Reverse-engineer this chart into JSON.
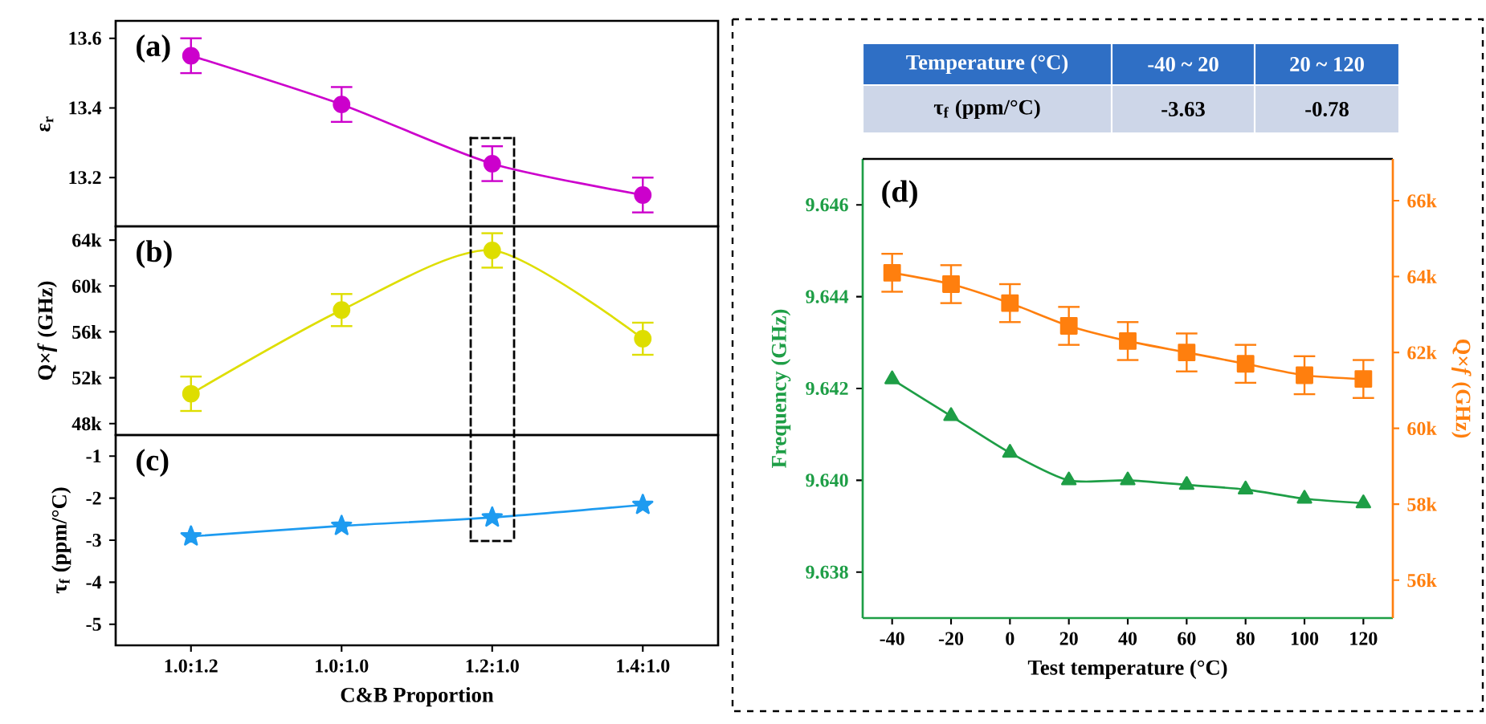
{
  "chart_data": [
    {
      "type": "line",
      "title": "(a)",
      "ylabel": "ε$_{r}$",
      "categories": [
        null,
        null,
        null,
        null
      ],
      "series": [
        {
          "color": "#cc00cc",
          "values": [
            13.55,
            13.41,
            13.24,
            13.15
          ],
          "errors": [
            0.05,
            0.05,
            0.05,
            0.05
          ]
        }
      ],
      "ylim": [
        13.06,
        13.65
      ],
      "yticks": [
        13.2,
        13.4,
        13.6
      ],
      "marker": "circle",
      "tick_labels": "y"
    },
    {
      "type": "line",
      "title": "(b)",
      "ylabel": "Q×*f* (GHz)",
      "categories": [
        null,
        null,
        null,
        null
      ],
      "series": [
        {
          "color": "#dede00",
          "values": [
            50600,
            57900,
            63100,
            55400
          ],
          "errors": [
            1500,
            1400,
            1500,
            1400
          ]
        }
      ],
      "ylim": [
        47000,
        65200
      ],
      "yticks": [
        {
          "value": 48000,
          "label": "48k"
        },
        {
          "value": 52000,
          "label": "52k"
        },
        {
          "value": 56000,
          "label": "56k"
        },
        {
          "value": 60000,
          "label": "60k"
        },
        {
          "value": 64000,
          "label": "64k"
        }
      ],
      "marker": "circle",
      "tick_labels": "y"
    },
    {
      "type": "line",
      "title": "(c)",
      "ylabel": "τ$_{f}$ (ppm/°C)",
      "xlabel": "C&B Proportion",
      "categories": [
        "1.0:1.2",
        "1.0:1.0",
        "1.2:1.0",
        "1.4:1.0"
      ],
      "series": [
        {
          "color": "#1e9bf0",
          "values": [
            -2.91,
            -2.66,
            -2.46,
            -2.16
          ]
        }
      ],
      "ylim": [
        -5.5,
        -0.5
      ],
      "yticks": [
        -5,
        -4,
        -3,
        -2,
        -1
      ],
      "marker": "star"
    },
    {
      "type": "other",
      "annotations": [
        "Temperature (°C)",
        "-40 ~ 20",
        "20 ~ 120",
        "τ$_{f}$ (ppm/°C)",
        "-3.63",
        "-0.78"
      ]
    },
    {
      "type": "line",
      "title": "(d)",
      "xlabel": "Test temperature (°C)",
      "ylabel": "Frequency (GHz)",
      "y2label": "Q×*f* (GHz)",
      "x": [
        -40,
        -20,
        0,
        20,
        40,
        60,
        80,
        100,
        120
      ],
      "series": [
        {
          "color": "#1e9e46",
          "marker": "triangle",
          "values": [
            9.6422,
            9.6414,
            9.6406,
            9.64,
            9.64,
            9.6399,
            9.6398,
            9.6396,
            9.6395
          ]
        },
        {
          "color": "#ff7f0e",
          "marker": "square",
          "axis": "y2",
          "values": [
            64100,
            63800,
            63300,
            62700,
            62300,
            62000,
            61700,
            61400,
            61300
          ],
          "errors": [
            500,
            500,
            500,
            500,
            500,
            500,
            500,
            500,
            500
          ]
        }
      ],
      "xlim": [
        -50,
        130
      ],
      "xticks": [
        -40,
        -20,
        0,
        20,
        40,
        60,
        80,
        100,
        120
      ],
      "ylim": [
        9.637,
        9.647
      ],
      "yticks": [
        {
          "value": 9.638,
          "label": "9.638"
        },
        {
          "value": 9.64,
          "label": "9.640"
        },
        {
          "value": 9.642,
          "label": "9.642"
        },
        {
          "value": 9.644,
          "label": "9.644"
        },
        {
          "value": 9.646,
          "label": "9.646"
        }
      ],
      "y2lim": [
        55000,
        67100
      ],
      "y2ticks": [
        {
          "value": 56000,
          "label": "56k"
        },
        {
          "value": 58000,
          "label": "58k"
        },
        {
          "value": 60000,
          "label": "60k"
        },
        {
          "value": 62000,
          "label": "62k"
        },
        {
          "value": 64000,
          "label": "64k"
        },
        {
          "value": 66000,
          "label": "66k"
        }
      ]
    }
  ]
}
